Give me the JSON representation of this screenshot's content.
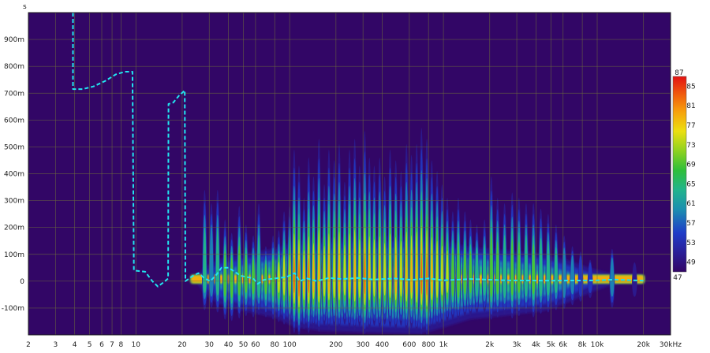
{
  "chart_data": {
    "type": "heatmap",
    "title": "",
    "xlabel": "",
    "ylabel": "s",
    "x_scale": "log",
    "xlim_hz": [
      2,
      30000
    ],
    "ylim_s": [
      -0.2,
      1.0
    ],
    "grid": true,
    "x_ticks": [
      {
        "v": 2,
        "label": "2"
      },
      {
        "v": 3,
        "label": "3"
      },
      {
        "v": 4,
        "label": "4"
      },
      {
        "v": 5,
        "label": "5"
      },
      {
        "v": 6,
        "label": "6"
      },
      {
        "v": 7,
        "label": "7"
      },
      {
        "v": 8,
        "label": "8"
      },
      {
        "v": 10,
        "label": "10"
      },
      {
        "v": 20,
        "label": "20"
      },
      {
        "v": 30,
        "label": "30"
      },
      {
        "v": 40,
        "label": "40"
      },
      {
        "v": 50,
        "label": "50"
      },
      {
        "v": 60,
        "label": "60"
      },
      {
        "v": 80,
        "label": "80"
      },
      {
        "v": 100,
        "label": "100"
      },
      {
        "v": 200,
        "label": "200"
      },
      {
        "v": 300,
        "label": "300"
      },
      {
        "v": 400,
        "label": "400"
      },
      {
        "v": 600,
        "label": "600"
      },
      {
        "v": 800,
        "label": "800"
      },
      {
        "v": 1000,
        "label": "1k"
      },
      {
        "v": 2000,
        "label": "2k"
      },
      {
        "v": 3000,
        "label": "3k"
      },
      {
        "v": 4000,
        "label": "4k"
      },
      {
        "v": 5000,
        "label": "5k"
      },
      {
        "v": 6000,
        "label": "6k"
      },
      {
        "v": 8000,
        "label": "8k"
      },
      {
        "v": 10000,
        "label": "10k"
      },
      {
        "v": 20000,
        "label": "20k"
      },
      {
        "v": 30000,
        "label": "30kHz"
      }
    ],
    "y_ticks": [
      {
        "v": 0.9,
        "label": "900m"
      },
      {
        "v": 0.8,
        "label": "800m"
      },
      {
        "v": 0.7,
        "label": "700m"
      },
      {
        "v": 0.6,
        "label": "600m"
      },
      {
        "v": 0.5,
        "label": "500m"
      },
      {
        "v": 0.4,
        "label": "400m"
      },
      {
        "v": 0.3,
        "label": "300m"
      },
      {
        "v": 0.2,
        "label": "200m"
      },
      {
        "v": 0.1,
        "label": "100m"
      },
      {
        "v": 0.0,
        "label": "0"
      },
      {
        "v": -0.1,
        "label": "-100m"
      }
    ],
    "colorbar": {
      "min": 47,
      "max": 87,
      "ticks": [
        {
          "v": 87,
          "label": "87"
        },
        {
          "v": 85,
          "label": "85"
        },
        {
          "v": 81,
          "label": "81"
        },
        {
          "v": 77,
          "label": "77"
        },
        {
          "v": 73,
          "label": "73"
        },
        {
          "v": 69,
          "label": "69"
        },
        {
          "v": 65,
          "label": "65"
        },
        {
          "v": 61,
          "label": "61"
        },
        {
          "v": 57,
          "label": "57"
        },
        {
          "v": 53,
          "label": "53"
        },
        {
          "v": 49,
          "label": "49"
        },
        {
          "v": 47,
          "label": "47"
        }
      ]
    },
    "overlay_series": {
      "name": "",
      "points": [
        [
          3.9,
          1.0
        ],
        [
          3.9,
          0.715
        ],
        [
          4.5,
          0.715
        ],
        [
          5.3,
          0.725
        ],
        [
          6.3,
          0.745
        ],
        [
          7.4,
          0.77
        ],
        [
          8.5,
          0.78
        ],
        [
          9.5,
          0.78
        ],
        [
          9.7,
          0.04
        ],
        [
          11.5,
          0.035
        ],
        [
          12.8,
          0.0
        ],
        [
          13.9,
          -0.02
        ],
        [
          15.5,
          0.0
        ],
        [
          16.2,
          0.01
        ],
        [
          16.3,
          0.66
        ],
        [
          17.5,
          0.665
        ],
        [
          19.0,
          0.69
        ],
        [
          20.8,
          0.71
        ],
        [
          21.0,
          0.0
        ],
        [
          23.5,
          0.02
        ],
        [
          25.5,
          0.03
        ],
        [
          28.0,
          0.01
        ],
        [
          30.5,
          0.0
        ],
        [
          33.5,
          0.025
        ],
        [
          36.0,
          0.05
        ],
        [
          40.0,
          0.05
        ],
        [
          44.0,
          0.035
        ],
        [
          48.0,
          0.02
        ],
        [
          53.0,
          0.015
        ],
        [
          58.0,
          0.01
        ],
        [
          62.0,
          -0.01
        ],
        [
          68.0,
          0.005
        ],
        [
          80.0,
          0.01
        ],
        [
          95.0,
          0.015
        ],
        [
          108.0,
          0.03
        ],
        [
          116.0,
          0.0
        ],
        [
          130.0,
          0.01
        ],
        [
          150.0,
          0.0
        ],
        [
          180.0,
          0.012
        ],
        [
          220.0,
          0.008
        ],
        [
          280.0,
          0.012
        ],
        [
          350.0,
          0.006
        ],
        [
          480.0,
          0.01
        ],
        [
          620.0,
          0.005
        ],
        [
          800.0,
          0.01
        ],
        [
          1000.0,
          0.003
        ],
        [
          1500.0,
          0.008
        ],
        [
          2500.0,
          0.003
        ],
        [
          5000.0,
          0.002
        ],
        [
          10000.0,
          0.003
        ],
        [
          13000.0,
          0.006
        ],
        [
          20000.0,
          0.002
        ]
      ]
    },
    "spectrogram_ridges_hz": [
      {
        "f": 28,
        "peak": 64,
        "h": 0.33
      },
      {
        "f": 31,
        "peak": 62,
        "h": 0.28
      },
      {
        "f": 34,
        "peak": 66,
        "h": 0.33
      },
      {
        "f": 38,
        "peak": 72,
        "h": 0.22
      },
      {
        "f": 42,
        "peak": 73,
        "h": 0.17
      },
      {
        "f": 47,
        "peak": 71,
        "h": 0.27
      },
      {
        "f": 52,
        "peak": 69,
        "h": 0.2
      },
      {
        "f": 58,
        "peak": 70,
        "h": 0.16
      },
      {
        "f": 63,
        "peak": 68,
        "h": 0.28
      },
      {
        "f": 70,
        "peak": 70,
        "h": 0.12
      },
      {
        "f": 78,
        "peak": 72,
        "h": 0.16
      },
      {
        "f": 85,
        "peak": 74,
        "h": 0.18
      },
      {
        "f": 92,
        "peak": 76,
        "h": 0.25
      },
      {
        "f": 100,
        "peak": 77,
        "h": 0.27
      },
      {
        "f": 107,
        "peak": 83,
        "h": 0.48
      },
      {
        "f": 115,
        "peak": 86,
        "h": 0.42
      },
      {
        "f": 124,
        "peak": 80,
        "h": 0.3
      },
      {
        "f": 133,
        "peak": 83,
        "h": 0.45
      },
      {
        "f": 143,
        "peak": 79,
        "h": 0.38
      },
      {
        "f": 155,
        "peak": 82,
        "h": 0.52
      },
      {
        "f": 168,
        "peak": 77,
        "h": 0.35
      },
      {
        "f": 180,
        "peak": 80,
        "h": 0.48
      },
      {
        "f": 195,
        "peak": 78,
        "h": 0.44
      },
      {
        "f": 210,
        "peak": 80,
        "h": 0.5
      },
      {
        "f": 228,
        "peak": 76,
        "h": 0.36
      },
      {
        "f": 245,
        "peak": 79,
        "h": 0.48
      },
      {
        "f": 265,
        "peak": 81,
        "h": 0.52
      },
      {
        "f": 285,
        "peak": 78,
        "h": 0.42
      },
      {
        "f": 308,
        "peak": 84,
        "h": 0.55
      },
      {
        "f": 330,
        "peak": 80,
        "h": 0.45
      },
      {
        "f": 355,
        "peak": 77,
        "h": 0.42
      },
      {
        "f": 385,
        "peak": 79,
        "h": 0.45
      },
      {
        "f": 415,
        "peak": 76,
        "h": 0.38
      },
      {
        "f": 450,
        "peak": 78,
        "h": 0.48
      },
      {
        "f": 490,
        "peak": 80,
        "h": 0.44
      },
      {
        "f": 530,
        "peak": 77,
        "h": 0.4
      },
      {
        "f": 575,
        "peak": 81,
        "h": 0.5
      },
      {
        "f": 620,
        "peak": 79,
        "h": 0.46
      },
      {
        "f": 670,
        "peak": 82,
        "h": 0.5
      },
      {
        "f": 720,
        "peak": 84,
        "h": 0.56
      },
      {
        "f": 780,
        "peak": 85,
        "h": 0.52
      },
      {
        "f": 840,
        "peak": 80,
        "h": 0.44
      },
      {
        "f": 910,
        "peak": 78,
        "h": 0.4
      },
      {
        "f": 980,
        "peak": 76,
        "h": 0.35
      },
      {
        "f": 1060,
        "peak": 74,
        "h": 0.3
      },
      {
        "f": 1150,
        "peak": 72,
        "h": 0.25
      },
      {
        "f": 1250,
        "peak": 73,
        "h": 0.3
      },
      {
        "f": 1380,
        "peak": 70,
        "h": 0.25
      },
      {
        "f": 1500,
        "peak": 69,
        "h": 0.22
      },
      {
        "f": 1650,
        "peak": 67,
        "h": 0.2
      },
      {
        "f": 1850,
        "peak": 66,
        "h": 0.22
      },
      {
        "f": 2050,
        "peak": 72,
        "h": 0.38
      },
      {
        "f": 2250,
        "peak": 70,
        "h": 0.3
      },
      {
        "f": 2500,
        "peak": 68,
        "h": 0.28
      },
      {
        "f": 2800,
        "peak": 71,
        "h": 0.32
      },
      {
        "f": 3100,
        "peak": 69,
        "h": 0.3
      },
      {
        "f": 3450,
        "peak": 67,
        "h": 0.28
      },
      {
        "f": 3850,
        "peak": 70,
        "h": 0.28
      },
      {
        "f": 4300,
        "peak": 67,
        "h": 0.26
      },
      {
        "f": 4800,
        "peak": 66,
        "h": 0.24
      },
      {
        "f": 5400,
        "peak": 64,
        "h": 0.2
      },
      {
        "f": 6100,
        "peak": 63,
        "h": 0.16
      },
      {
        "f": 6900,
        "peak": 60,
        "h": 0.12
      },
      {
        "f": 7800,
        "peak": 57,
        "h": 0.1
      },
      {
        "f": 9000,
        "peak": 54,
        "h": 0.07
      },
      {
        "f": 12500,
        "peak": 62,
        "h": 0.11
      },
      {
        "f": 17500,
        "peak": 53,
        "h": 0.06
      }
    ]
  }
}
